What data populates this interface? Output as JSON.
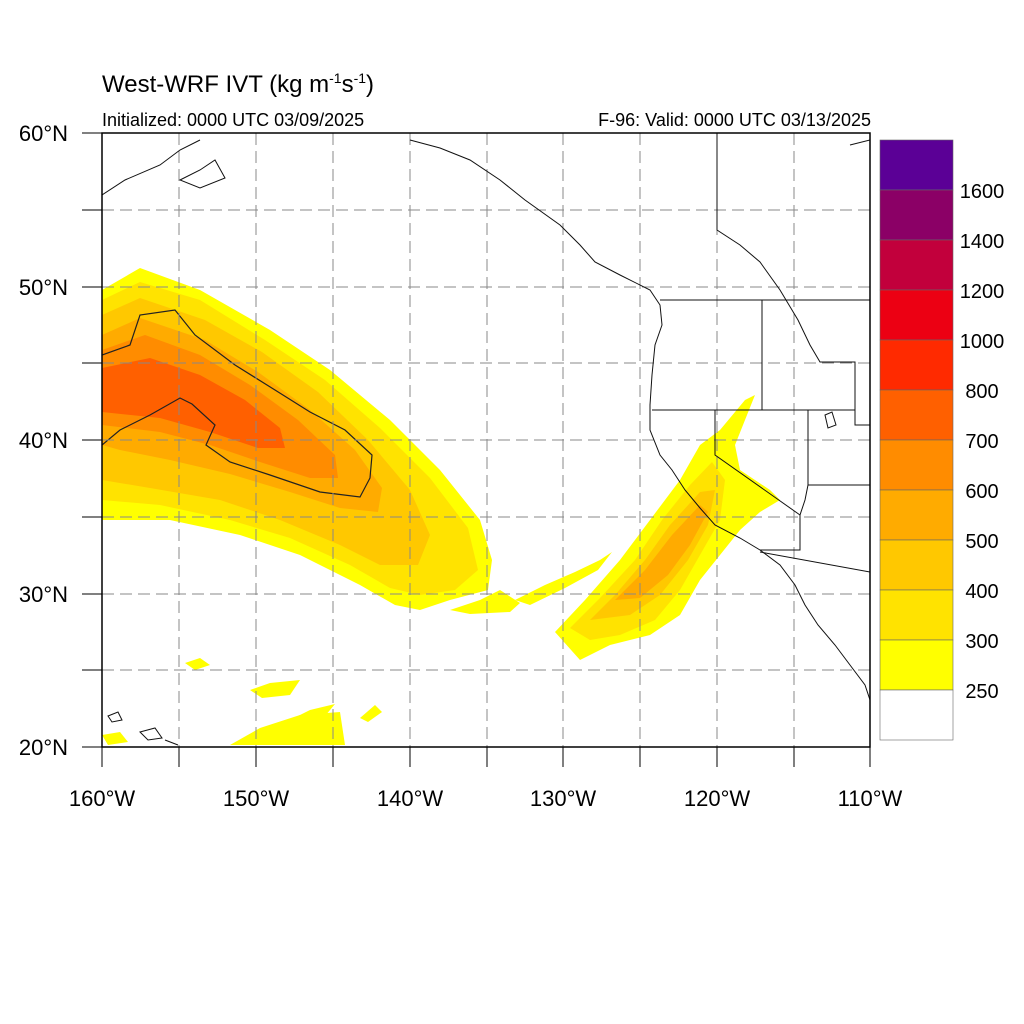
{
  "title": {
    "main": "West-WRF IVT (kg m",
    "exp1": "-1",
    "mid": "s",
    "exp2": "-1",
    "end": ")"
  },
  "init_text": "Initialized: 0000 UTC 03/09/2025",
  "valid_text": "F-96: Valid: 0000 UTC 03/13/2025",
  "map": {
    "lon_range": [
      -160,
      -110
    ],
    "lat_range": [
      20,
      60
    ],
    "grid": true,
    "lon_labels": [
      "160°W",
      "150°W",
      "140°W",
      "130°W",
      "120°W",
      "110°W"
    ],
    "lat_labels": [
      "60°N",
      "50°N",
      "40°N",
      "30°N",
      "20°N"
    ]
  },
  "colorbar": {
    "labels": [
      "1600",
      "1400",
      "1200",
      "1000",
      "800",
      "700",
      "600",
      "500",
      "400",
      "300",
      "250"
    ],
    "colors": [
      "#5b0096",
      "#8b0066",
      "#c2003c",
      "#ec0013",
      "#ff2a00",
      "#ff6000",
      "#ff8c00",
      "#ffab00",
      "#ffc800",
      "#ffe300",
      "#ffff00",
      "#ffffff"
    ]
  },
  "chart_data": {
    "type": "heatmap",
    "variable": "IVT",
    "units": "kg m-1 s-1",
    "levels": [
      250,
      300,
      400,
      500,
      600,
      700,
      800,
      1000,
      1200,
      1400,
      1600
    ]
  }
}
